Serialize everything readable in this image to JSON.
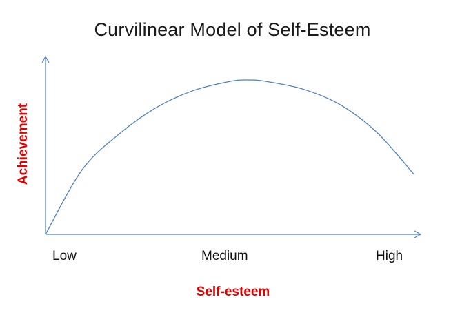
{
  "chart_data": {
    "type": "line",
    "title": "Curvilinear Model of Self-Esteem",
    "xlabel": "Self-esteem",
    "ylabel": "Achievement",
    "x_tick_labels": [
      "Low",
      "Medium",
      "High"
    ],
    "series": [
      {
        "shape": "inverted-u",
        "x": [
          0,
          0.1,
          0.2,
          0.3,
          0.4,
          0.5,
          0.55,
          0.6,
          0.7,
          0.8,
          0.9,
          1.0
        ],
        "y": [
          0,
          0.42,
          0.65,
          0.82,
          0.93,
          0.99,
          1.0,
          0.99,
          0.94,
          0.84,
          0.66,
          0.39
        ]
      }
    ],
    "grid": false,
    "legend": "none",
    "colors": {
      "curve": "#4f81bd",
      "axes": "#4f81bd",
      "axis_titles": "#e00000"
    }
  }
}
